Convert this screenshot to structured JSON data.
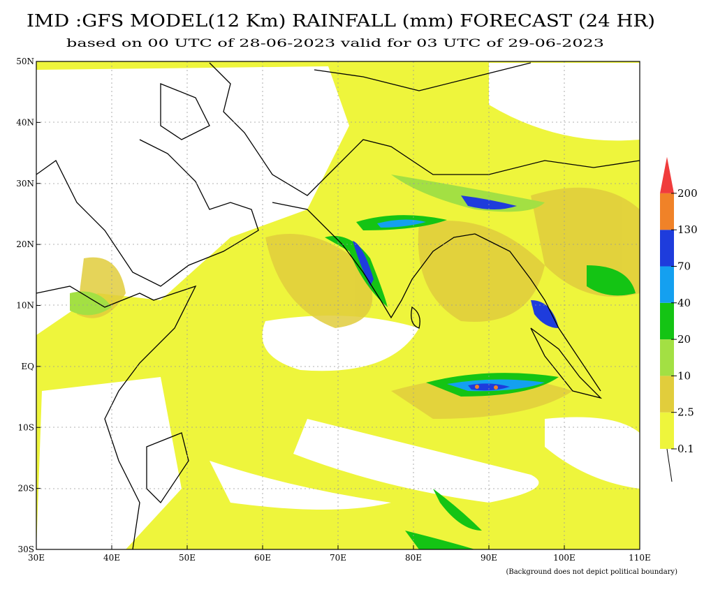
{
  "header": {
    "title": "IMD :GFS MODEL(12 Km) RAINFALL (mm) FORECAST (24 HR)",
    "subtitle": "based on 00 UTC of 28-06-2023 valid for 03 UTC of 29-06-2023"
  },
  "map": {
    "lat_labels": [
      "50N",
      "40N",
      "30N",
      "20N",
      "10N",
      "EQ",
      "10S",
      "20S",
      "30S"
    ],
    "lon_labels": [
      "30E",
      "40E",
      "50E",
      "60E",
      "70E",
      "80E",
      "90E",
      "100E",
      "110E"
    ]
  },
  "legend": {
    "levels": [
      0.1,
      2.5,
      10,
      20,
      40,
      70,
      130,
      200
    ],
    "colors": [
      "#eef53c",
      "#e1cd3c",
      "#a3e043",
      "#14c414",
      "#14a0f0",
      "#1e3cdc",
      "#f08228",
      "#f03c3c"
    ]
  },
  "footnote": "(Background does not depict political boundary)"
}
